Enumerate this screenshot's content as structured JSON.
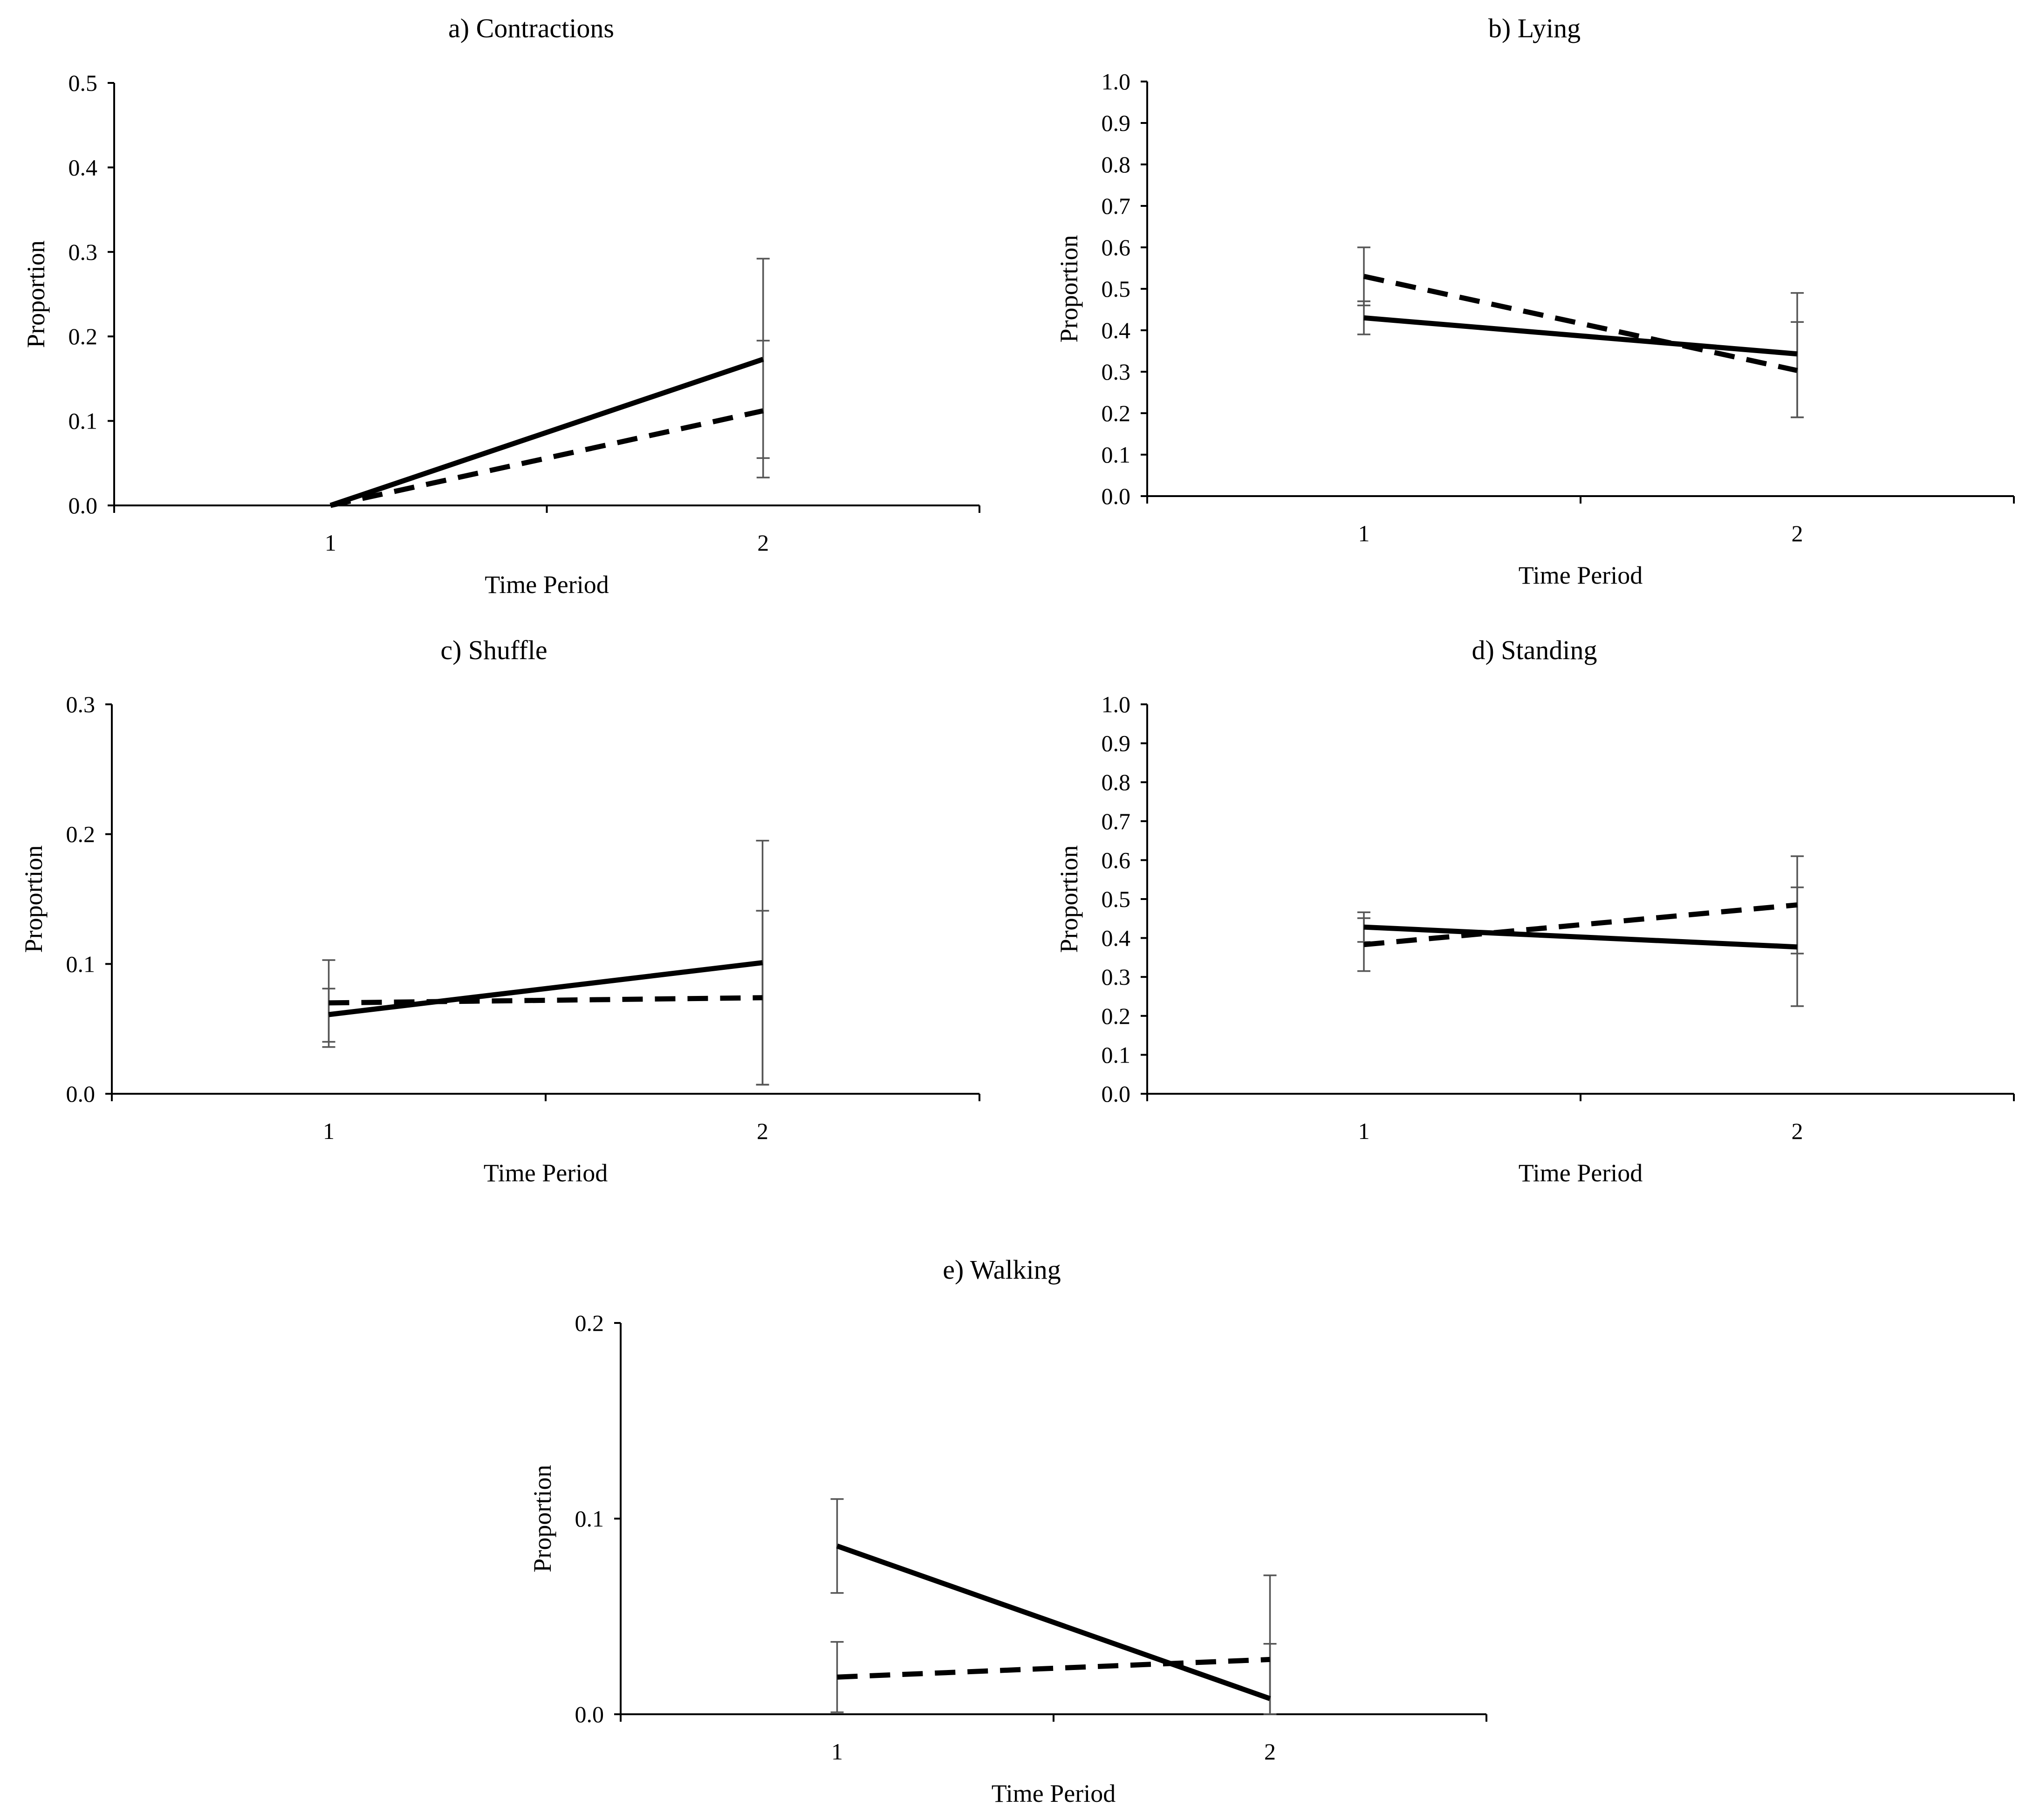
{
  "figure": {
    "description_labels": {
      "x_axis": "Time Period",
      "y_axis": "Proportion"
    }
  },
  "chart_data": [
    {
      "id": "a",
      "type": "line",
      "title": "a) Contractions",
      "xlabel": "Time Period",
      "ylabel": "Proportion",
      "categories": [
        "1",
        "2"
      ],
      "ylim": [
        0,
        0.5
      ],
      "yticks": [
        "0.0",
        "0.1",
        "0.2",
        "0.3",
        "0.4",
        "0.5"
      ],
      "ytick_values": [
        0,
        0.1,
        0.2,
        0.3,
        0.4,
        0.5
      ],
      "series": [
        {
          "name": "solid",
          "style": "solid",
          "values": [
            0.0,
            0.173
          ],
          "errors": [
            [
              0.0,
              0.0
            ],
            [
              0.056,
              0.292
            ]
          ]
        },
        {
          "name": "dashed",
          "style": "dashed",
          "values": [
            0.0,
            0.112
          ],
          "errors": [
            [
              0.0,
              0.0
            ],
            [
              0.033,
              0.195
            ]
          ]
        }
      ]
    },
    {
      "id": "b",
      "type": "line",
      "title": "b) Lying",
      "xlabel": "Time Period",
      "ylabel": "Proportion",
      "categories": [
        "1",
        "2"
      ],
      "ylim": [
        0,
        1.0
      ],
      "yticks": [
        "0.0",
        "0.1",
        "0.2",
        "0.3",
        "0.4",
        "0.5",
        "0.6",
        "0.7",
        "0.8",
        "0.9",
        "1.0"
      ],
      "ytick_values": [
        0,
        0.1,
        0.2,
        0.3,
        0.4,
        0.5,
        0.6,
        0.7,
        0.8,
        0.9,
        1.0
      ],
      "series": [
        {
          "name": "solid",
          "style": "solid",
          "values": [
            0.43,
            0.343
          ],
          "errors": [
            [
              0.39,
              0.47
            ],
            [
              0.19,
              0.42
            ]
          ]
        },
        {
          "name": "dashed",
          "style": "dashed",
          "values": [
            0.53,
            0.303
          ],
          "errors": [
            [
              0.46,
              0.6
            ],
            [
              0.19,
              0.49
            ]
          ]
        }
      ]
    },
    {
      "id": "c",
      "type": "line",
      "title": "c) Shuffle",
      "xlabel": "Time Period",
      "ylabel": "Proportion",
      "categories": [
        "1",
        "2"
      ],
      "ylim": [
        0,
        0.3
      ],
      "yticks": [
        "0.0",
        "0.1",
        "0.2",
        "0.3"
      ],
      "ytick_values": [
        0,
        0.1,
        0.2,
        0.3
      ],
      "series": [
        {
          "name": "solid",
          "style": "solid",
          "values": [
            0.061,
            0.101
          ],
          "errors": [
            [
              0.04,
              0.081
            ],
            [
              0.007,
              0.195
            ]
          ]
        },
        {
          "name": "dashed",
          "style": "dashed",
          "values": [
            0.07,
            0.074
          ],
          "errors": [
            [
              0.036,
              0.103
            ],
            [
              0.007,
              0.141
            ]
          ]
        }
      ]
    },
    {
      "id": "d",
      "type": "line",
      "title": "d) Standing",
      "xlabel": "Time Period",
      "ylabel": "Proportion",
      "categories": [
        "1",
        "2"
      ],
      "ylim": [
        0,
        1.0
      ],
      "yticks": [
        "0.0",
        "0.1",
        "0.2",
        "0.3",
        "0.4",
        "0.5",
        "0.6",
        "0.7",
        "0.8",
        "0.9",
        "1.0"
      ],
      "ytick_values": [
        0,
        0.1,
        0.2,
        0.3,
        0.4,
        0.5,
        0.6,
        0.7,
        0.8,
        0.9,
        1.0
      ],
      "series": [
        {
          "name": "solid",
          "style": "solid",
          "values": [
            0.428,
            0.377
          ],
          "errors": [
            [
              0.39,
              0.466
            ],
            [
              0.225,
              0.53
            ]
          ]
        },
        {
          "name": "dashed",
          "style": "dashed",
          "values": [
            0.383,
            0.485
          ],
          "errors": [
            [
              0.315,
              0.451
            ],
            [
              0.36,
              0.61
            ]
          ]
        }
      ]
    },
    {
      "id": "e",
      "type": "line",
      "title": "e) Walking",
      "xlabel": "Time Period",
      "ylabel": "Proportion",
      "categories": [
        "1",
        "2"
      ],
      "ylim": [
        0,
        0.2
      ],
      "yticks": [
        "0.0",
        "0.1",
        "0.2"
      ],
      "ytick_values": [
        0,
        0.1,
        0.2
      ],
      "series": [
        {
          "name": "solid",
          "style": "solid",
          "values": [
            0.086,
            0.008
          ],
          "errors": [
            [
              0.062,
              0.11
            ],
            [
              0.0,
              0.036
            ]
          ]
        },
        {
          "name": "dashed",
          "style": "dashed",
          "values": [
            0.019,
            0.028
          ],
          "errors": [
            [
              0.001,
              0.037
            ],
            [
              0.0,
              0.071
            ]
          ]
        }
      ]
    }
  ]
}
